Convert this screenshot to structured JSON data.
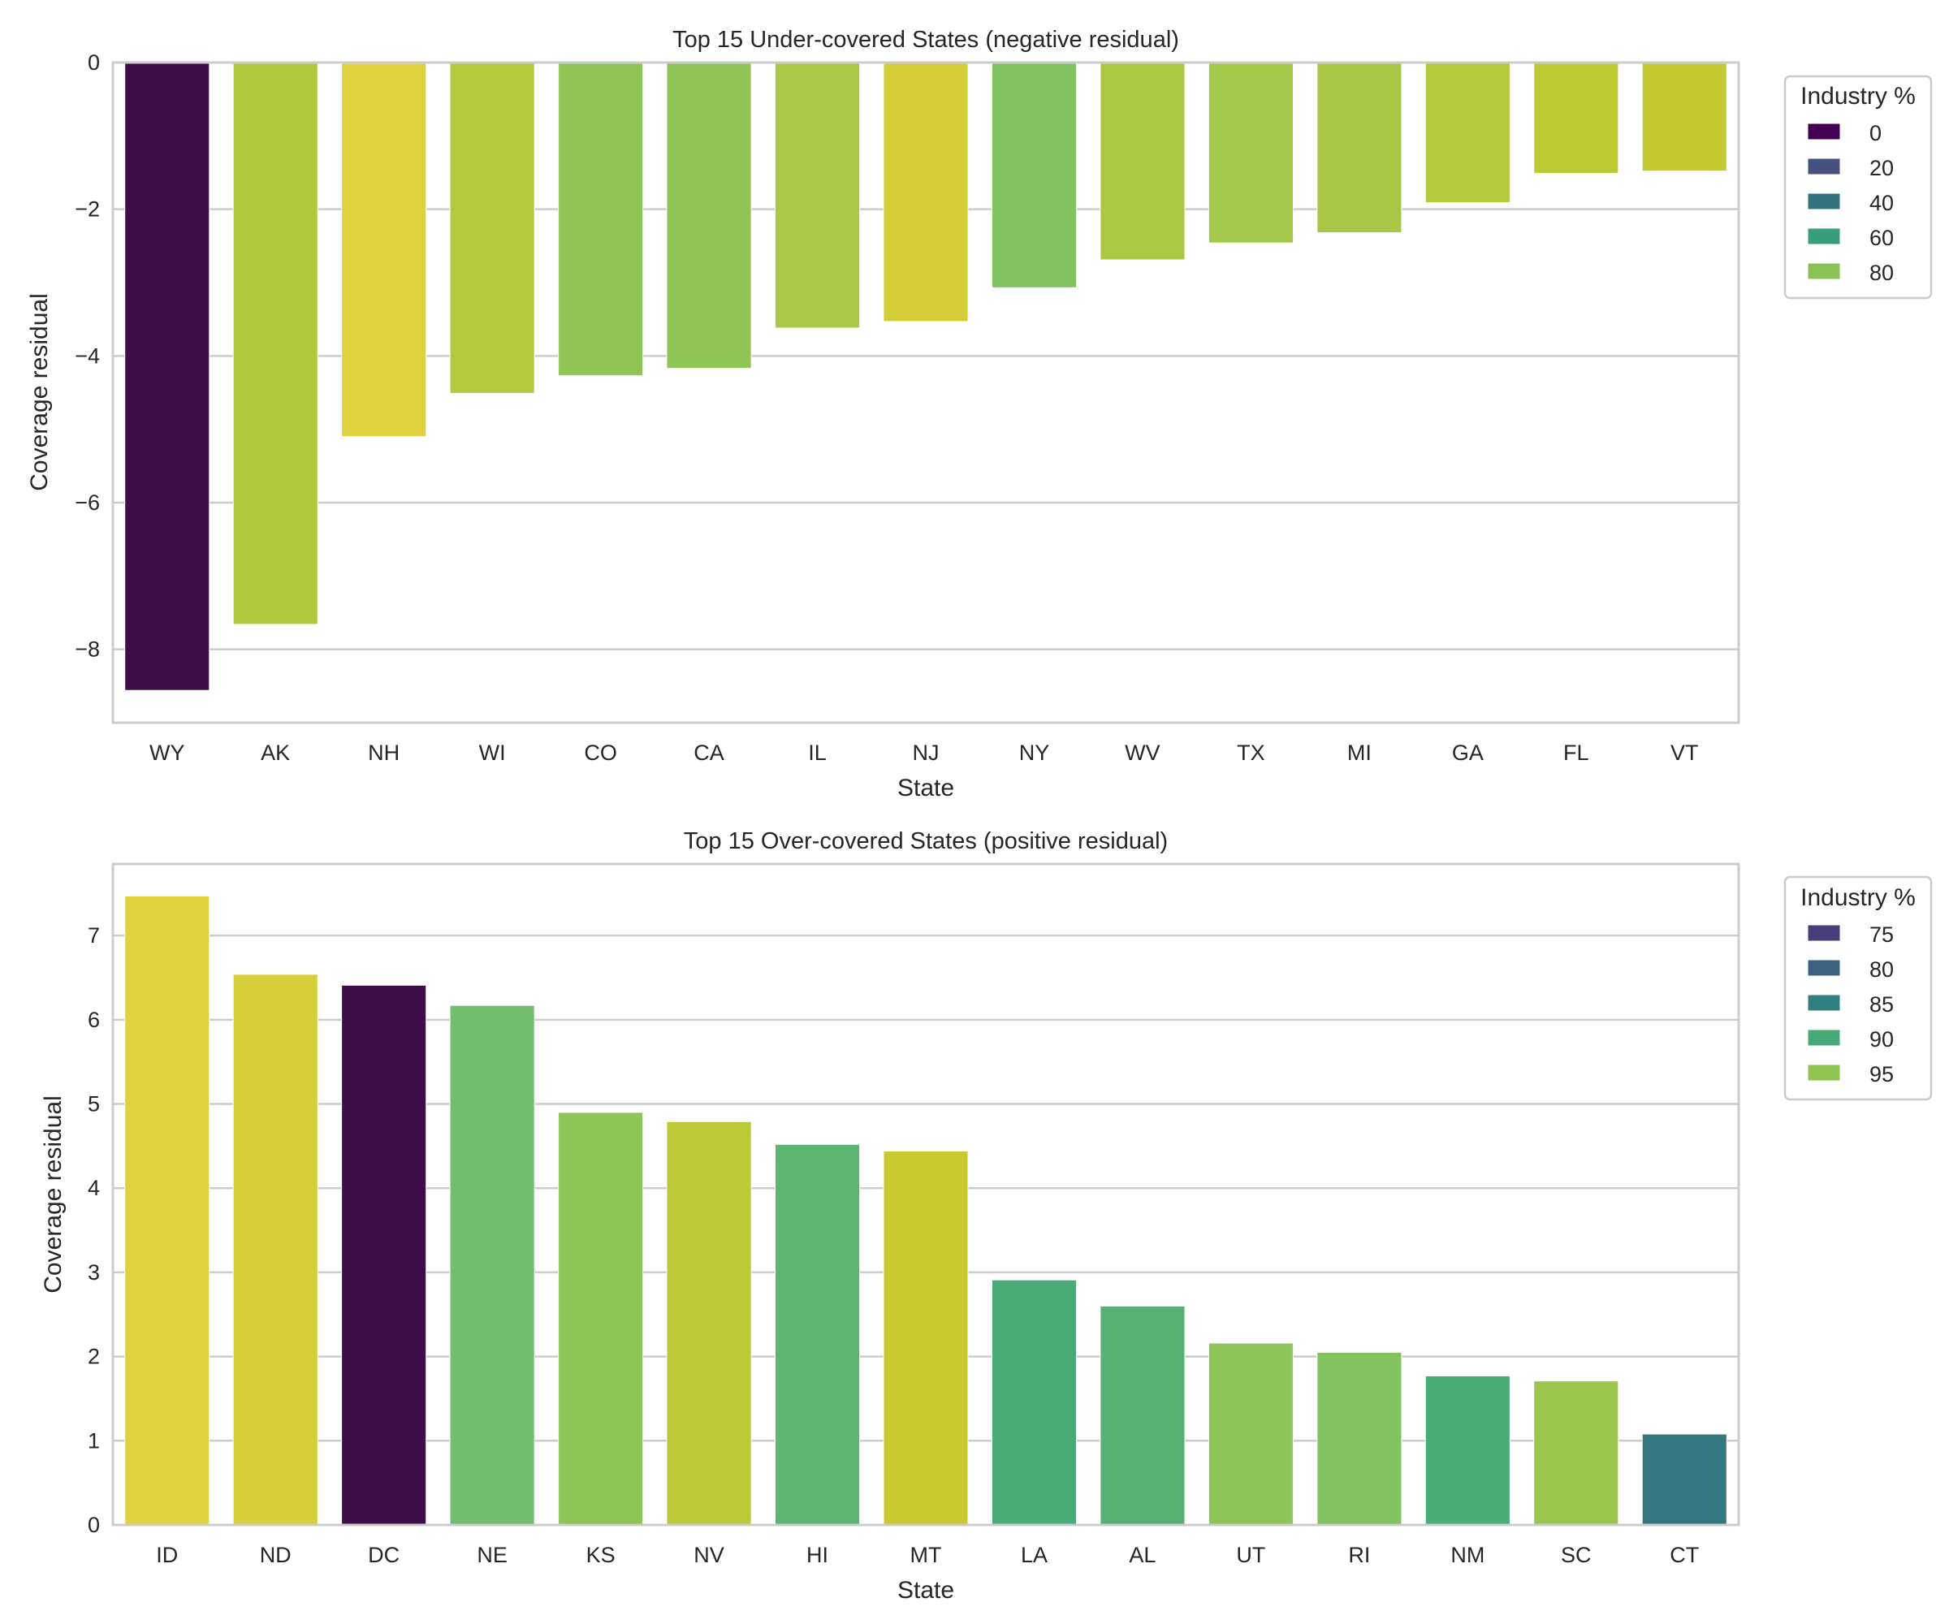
{
  "chart_data": [
    {
      "type": "bar",
      "title": "Top 15 Under-covered States (negative residual)",
      "xlabel": "State",
      "ylabel": "Coverage residual",
      "ylim": [
        -9,
        0
      ],
      "yticks": [
        0,
        -2,
        -4,
        -6,
        -8
      ],
      "ytick_labels": [
        "0",
        "−2",
        "−4",
        "−6",
        "−8"
      ],
      "grid": true,
      "categories": [
        "WY",
        "AK",
        "NH",
        "WI",
        "CO",
        "CA",
        "IL",
        "NJ",
        "NY",
        "WV",
        "TX",
        "MI",
        "GA",
        "FL",
        "VT"
      ],
      "values": [
        -8.56,
        -7.66,
        -5.1,
        -4.51,
        -4.27,
        -4.17,
        -3.62,
        -3.53,
        -3.07,
        -2.69,
        -2.46,
        -2.32,
        -1.91,
        -1.51,
        -1.48
      ],
      "colors": [
        "#3f0d4a",
        "#b0c83e",
        "#e0d23e",
        "#b5c93c",
        "#8fc556",
        "#8ec556",
        "#aac745",
        "#d2cd36",
        "#82c260",
        "#acc744",
        "#a4c849",
        "#a8c747",
        "#b6c93b",
        "#bdc933",
        "#c4ca31"
      ],
      "legend": {
        "title": "Industry %",
        "position": "outside-top-right",
        "entries": [
          {
            "label": "0",
            "color": "#440154"
          },
          {
            "label": "20",
            "color": "#46517f"
          },
          {
            "label": "40",
            "color": "#35717f"
          },
          {
            "label": "60",
            "color": "#379d7a"
          },
          {
            "label": "80",
            "color": "#8ac255"
          }
        ]
      }
    },
    {
      "type": "bar",
      "title": "Top 15 Over-covered States (positive residual)",
      "xlabel": "State",
      "ylabel": "Coverage residual",
      "ylim": [
        0,
        7.85
      ],
      "yticks": [
        0,
        1,
        2,
        3,
        4,
        5,
        6,
        7
      ],
      "ytick_labels": [
        "0",
        "1",
        "2",
        "3",
        "4",
        "5",
        "6",
        "7"
      ],
      "grid": true,
      "categories": [
        "ID",
        "ND",
        "DC",
        "NE",
        "KS",
        "NV",
        "HI",
        "MT",
        "LA",
        "AL",
        "UT",
        "RI",
        "NM",
        "SC",
        "CT"
      ],
      "values": [
        7.47,
        6.54,
        6.41,
        6.17,
        4.9,
        4.79,
        4.52,
        4.44,
        2.91,
        2.6,
        2.16,
        2.05,
        1.77,
        1.71,
        1.08
      ],
      "colors": [
        "#e0d23e",
        "#d7cf39",
        "#3f0d4a",
        "#73bd6e",
        "#8dc558",
        "#bac935",
        "#5eb571",
        "#c9ca30",
        "#4aaa78",
        "#56b173",
        "#8ec55b",
        "#82c261",
        "#49aa78",
        "#9bc64e",
        "#34777e"
      ],
      "legend": {
        "title": "Industry %",
        "position": "outside-top-right",
        "entries": [
          {
            "label": "75",
            "color": "#483d79"
          },
          {
            "label": "80",
            "color": "#3c6181"
          },
          {
            "label": "85",
            "color": "#30807f"
          },
          {
            "label": "90",
            "color": "#47a977"
          },
          {
            "label": "95",
            "color": "#8ec552"
          }
        ]
      }
    }
  ]
}
